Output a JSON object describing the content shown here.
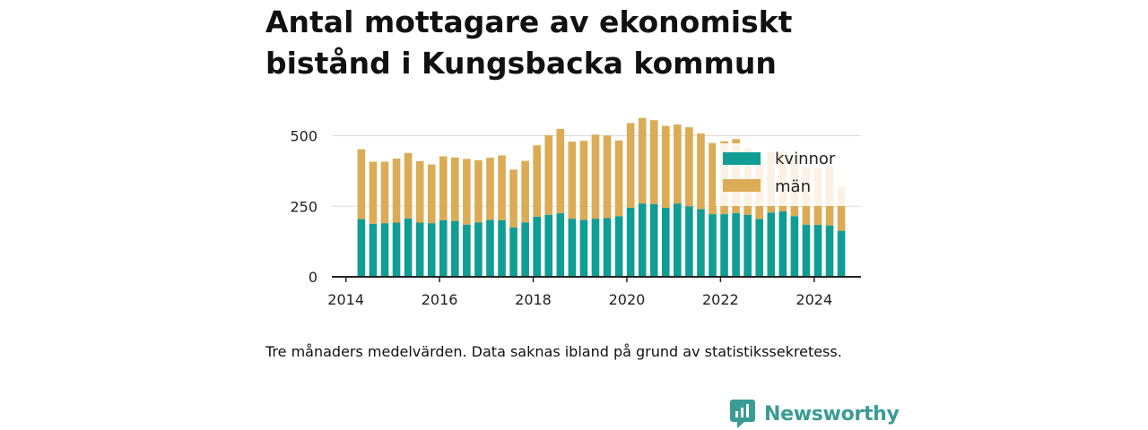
{
  "title": "Antal mottagare av ekonomiskt bistånd i Kungsbacka kommun",
  "caption": "Tre månaders medelvärden. Data saknas ibland på grund av statistikssekretess.",
  "brand": {
    "name": "Newsworthy",
    "icon": "newsworthy-logo-icon",
    "color": "#3a9c94"
  },
  "colors": {
    "kvinnor": "#109d94",
    "man": "#dbab55",
    "grid": "#dddddd",
    "axis": "#222222"
  },
  "chart_data": {
    "type": "bar",
    "stacked": true,
    "title": "Antal mottagare av ekonomiskt bistånd i Kungsbacka kommun",
    "xlabel": "",
    "ylabel": "",
    "xlim": [
      2013.7,
      2025.0
    ],
    "ylim": [
      0,
      600
    ],
    "x_ticks": [
      2014,
      2016,
      2018,
      2020,
      2022,
      2024
    ],
    "y_ticks": [
      0,
      250,
      500
    ],
    "legend": {
      "position": "top-right",
      "entries": [
        "kvinnor",
        "män"
      ]
    },
    "x": [
      2014.33,
      2014.58,
      2014.83,
      2015.08,
      2015.33,
      2015.58,
      2015.83,
      2016.08,
      2016.33,
      2016.58,
      2016.83,
      2017.08,
      2017.33,
      2017.58,
      2017.83,
      2018.08,
      2018.33,
      2018.58,
      2018.83,
      2019.08,
      2019.33,
      2019.58,
      2019.83,
      2020.08,
      2020.33,
      2020.58,
      2020.83,
      2021.08,
      2021.33,
      2021.58,
      2021.83,
      2022.08,
      2022.33,
      2022.58,
      2022.83,
      2023.08,
      2023.33,
      2023.58,
      2023.83,
      2024.08,
      2024.33,
      2024.58
    ],
    "series": [
      {
        "name": "kvinnor",
        "values": [
          205,
          188,
          190,
          192,
          207,
          192,
          190,
          200,
          198,
          185,
          193,
          202,
          200,
          175,
          193,
          213,
          220,
          226,
          206,
          202,
          206,
          208,
          215,
          245,
          260,
          258,
          245,
          260,
          250,
          240,
          222,
          222,
          226,
          220,
          205,
          228,
          232,
          215,
          185,
          184,
          182,
          163
        ]
      },
      {
        "name": "män",
        "values": [
          247,
          220,
          218,
          227,
          232,
          218,
          208,
          227,
          225,
          233,
          220,
          220,
          230,
          205,
          218,
          253,
          282,
          298,
          273,
          280,
          298,
          293,
          268,
          300,
          303,
          297,
          290,
          280,
          280,
          268,
          252,
          258,
          262,
          237,
          220,
          215,
          212,
          212,
          205,
          200,
          210,
          158
        ]
      }
    ]
  }
}
